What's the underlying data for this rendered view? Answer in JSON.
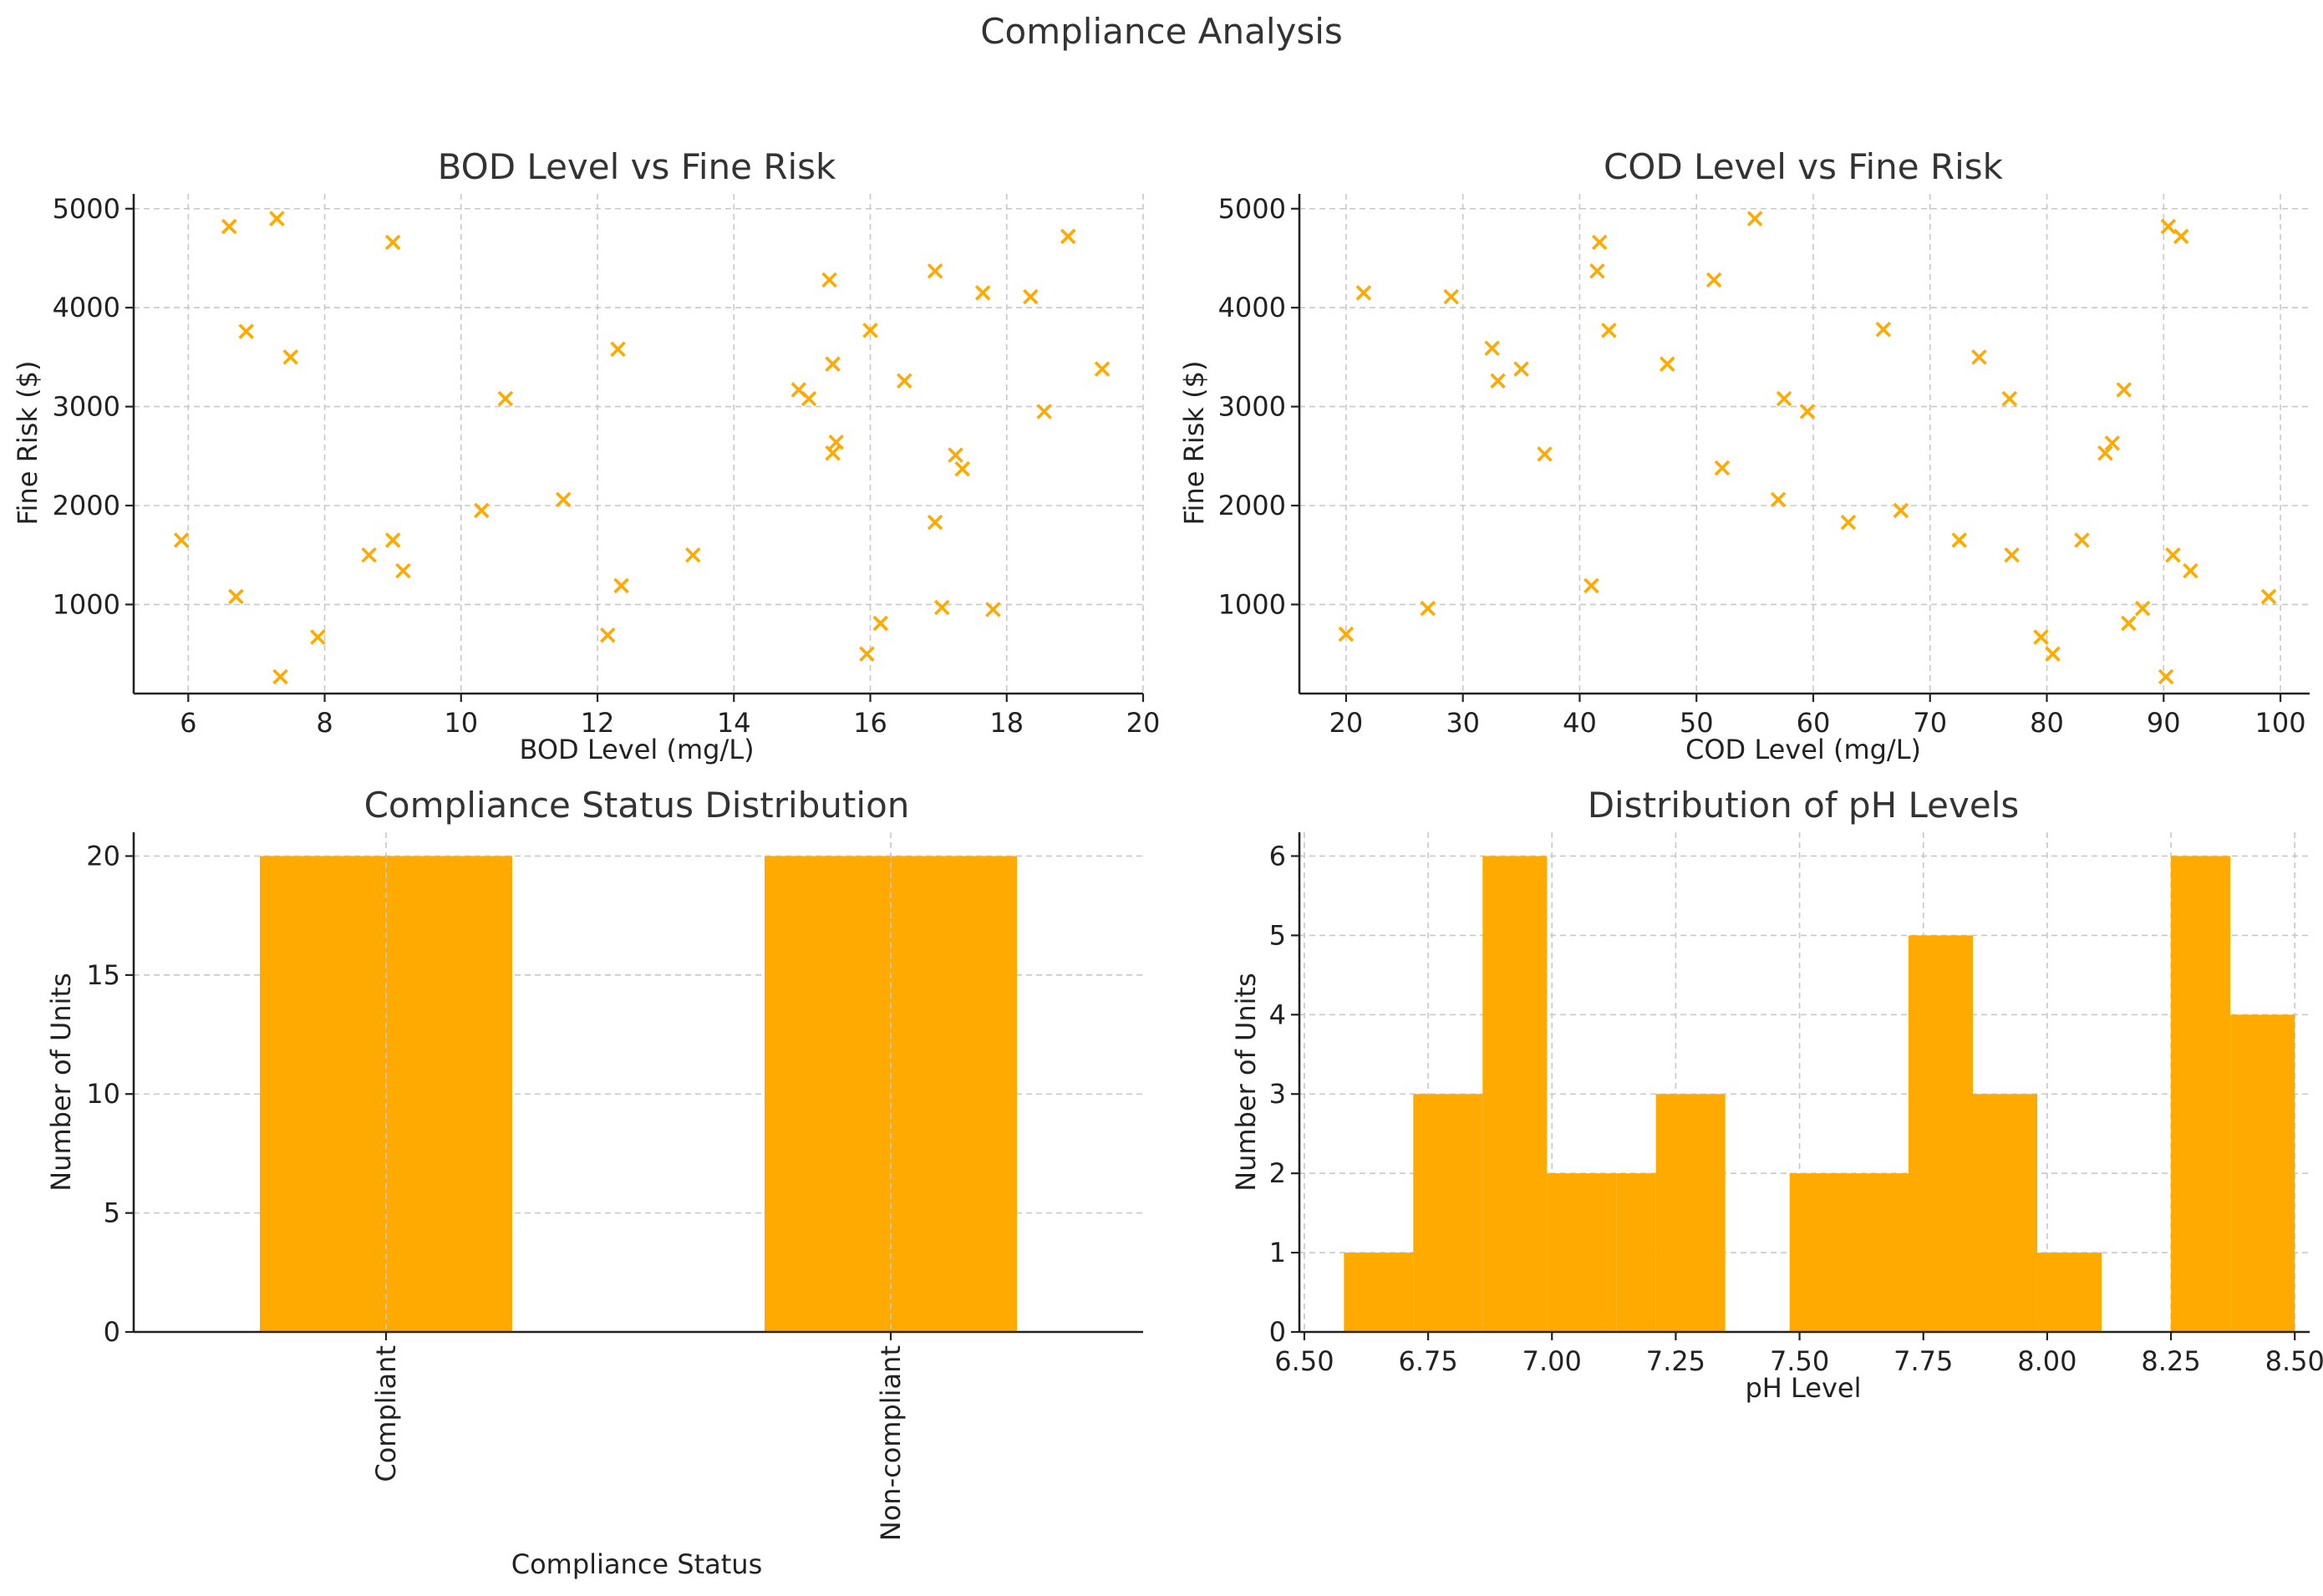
{
  "figure": {
    "title": "Compliance Analysis"
  },
  "colors": {
    "accent": "#FFAA00",
    "grid": "#c8c8c8",
    "axis": "#222222",
    "text": "#333333"
  },
  "chart_data": [
    {
      "type": "scatter",
      "title": "BOD Level vs Fine Risk",
      "xlabel": "BOD Level (mg/L)",
      "ylabel": "Fine Risk ($)",
      "xlim": [
        5.2,
        20
      ],
      "ylim": [
        100,
        5150
      ],
      "xticks": [
        6,
        8,
        10,
        12,
        14,
        16,
        18,
        20
      ],
      "yticks": [
        1000,
        2000,
        3000,
        4000,
        5000
      ],
      "marker": "x",
      "points": [
        [
          5.9,
          1650
        ],
        [
          6.6,
          4820
        ],
        [
          6.7,
          1080
        ],
        [
          6.85,
          3760
        ],
        [
          7.3,
          4900
        ],
        [
          7.35,
          270
        ],
        [
          7.5,
          3500
        ],
        [
          7.9,
          670
        ],
        [
          8.65,
          1500
        ],
        [
          9.0,
          4660
        ],
        [
          9.0,
          1650
        ],
        [
          9.15,
          1340
        ],
        [
          10.3,
          1950
        ],
        [
          10.65,
          3080
        ],
        [
          11.5,
          2060
        ],
        [
          12.15,
          690
        ],
        [
          12.3,
          3580
        ],
        [
          12.35,
          1190
        ],
        [
          13.4,
          1500
        ],
        [
          14.95,
          3170
        ],
        [
          15.1,
          3080
        ],
        [
          15.4,
          4280
        ],
        [
          15.45,
          3430
        ],
        [
          15.5,
          2640
        ],
        [
          15.45,
          2530
        ],
        [
          15.95,
          500
        ],
        [
          16.0,
          3770
        ],
        [
          16.15,
          810
        ],
        [
          16.5,
          3260
        ],
        [
          16.95,
          4370
        ],
        [
          16.95,
          1830
        ],
        [
          17.05,
          970
        ],
        [
          17.25,
          2510
        ],
        [
          17.35,
          2370
        ],
        [
          17.65,
          4150
        ],
        [
          17.8,
          950
        ],
        [
          18.35,
          4110
        ],
        [
          18.55,
          2950
        ],
        [
          18.9,
          4720
        ],
        [
          19.4,
          3380
        ]
      ]
    },
    {
      "type": "scatter",
      "title": "COD Level vs Fine Risk",
      "xlabel": "COD Level (mg/L)",
      "ylabel": "Fine Risk ($)",
      "xlim": [
        16,
        102.5
      ],
      "ylim": [
        100,
        5150
      ],
      "xticks": [
        20,
        30,
        40,
        50,
        60,
        70,
        80,
        90,
        100
      ],
      "yticks": [
        1000,
        2000,
        3000,
        4000,
        5000
      ],
      "marker": "x",
      "points": [
        [
          20,
          700
        ],
        [
          21.5,
          4150
        ],
        [
          27,
          960
        ],
        [
          29,
          4110
        ],
        [
          32.5,
          3590
        ],
        [
          33,
          3260
        ],
        [
          35,
          3380
        ],
        [
          37,
          2520
        ],
        [
          41,
          1190
        ],
        [
          41.5,
          4370
        ],
        [
          41.7,
          4660
        ],
        [
          42.5,
          3770
        ],
        [
          47.5,
          3430
        ],
        [
          51.5,
          4280
        ],
        [
          52.2,
          2380
        ],
        [
          55,
          4900
        ],
        [
          57,
          2060
        ],
        [
          57.5,
          3080
        ],
        [
          59.5,
          2950
        ],
        [
          63,
          1830
        ],
        [
          66,
          3780
        ],
        [
          67.5,
          1950
        ],
        [
          72.5,
          1650
        ],
        [
          74.2,
          3500
        ],
        [
          76.8,
          3080
        ],
        [
          77,
          1500
        ],
        [
          79.5,
          670
        ],
        [
          80.5,
          500
        ],
        [
          83,
          1650
        ],
        [
          85,
          2530
        ],
        [
          85.6,
          2630
        ],
        [
          86.6,
          3170
        ],
        [
          87,
          810
        ],
        [
          88.2,
          960
        ],
        [
          90.2,
          270
        ],
        [
          90.4,
          4820
        ],
        [
          90.8,
          1500
        ],
        [
          91.5,
          4720
        ],
        [
          92.3,
          1340
        ],
        [
          99,
          1080
        ]
      ]
    },
    {
      "type": "bar",
      "title": "Compliance Status Distribution",
      "xlabel": "Compliance Status",
      "ylabel": "Number of Units",
      "categories": [
        "Compliant",
        "Non-compliant"
      ],
      "values": [
        20,
        20
      ],
      "ylim": [
        0,
        21
      ],
      "yticks": [
        0,
        5,
        10,
        15,
        20
      ]
    },
    {
      "type": "histogram",
      "title": "Distribution of pH Levels",
      "xlabel": "pH Level",
      "ylabel": "Number of Units",
      "xlim": [
        6.49,
        8.53
      ],
      "ylim": [
        0,
        6.3
      ],
      "xticks": [
        "6.50",
        "6.75",
        "7.00",
        "7.25",
        "7.50",
        "7.75",
        "8.00",
        "8.25",
        "8.50"
      ],
      "yticks": [
        0,
        1,
        2,
        3,
        4,
        5,
        6
      ],
      "bins": [
        {
          "x0": 6.58,
          "x1": 6.72,
          "count": 1
        },
        {
          "x0": 6.72,
          "x1": 6.86,
          "count": 3
        },
        {
          "x0": 6.86,
          "x1": 6.99,
          "count": 6
        },
        {
          "x0": 6.99,
          "x1": 7.13,
          "count": 2
        },
        {
          "x0": 7.13,
          "x1": 7.21,
          "count": 2
        },
        {
          "x0": 7.21,
          "x1": 7.35,
          "count": 3
        },
        {
          "x0": 7.35,
          "x1": 7.48,
          "count": 0
        },
        {
          "x0": 7.48,
          "x1": 7.72,
          "count": 2
        },
        {
          "x0": 7.72,
          "x1": 7.85,
          "count": 5
        },
        {
          "x0": 7.85,
          "x1": 7.98,
          "count": 3
        },
        {
          "x0": 7.98,
          "x1": 8.11,
          "count": 1
        },
        {
          "x0": 8.11,
          "x1": 8.25,
          "count": 0
        },
        {
          "x0": 8.25,
          "x1": 8.37,
          "count": 6
        },
        {
          "x0": 8.37,
          "x1": 8.5,
          "count": 4
        }
      ]
    }
  ]
}
